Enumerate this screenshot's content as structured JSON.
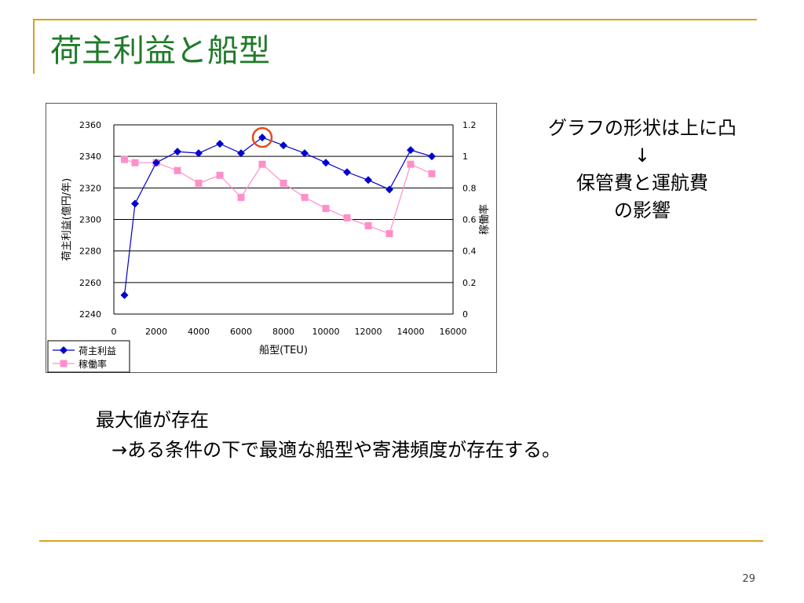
{
  "slide": {
    "title": "荷主利益と船型",
    "page_number": "29"
  },
  "note": {
    "line1": "グラフの形状は上に凸",
    "arrow": "↓",
    "line2": "保管費と運航費",
    "line3": "の影響"
  },
  "body": {
    "line1": "最大値が存在",
    "line2": "→ある条件の下で最適な船型や寄港頻度が存在する。"
  },
  "colors": {
    "accent": "#d9a21b",
    "title": "#1f7a28",
    "series_profit": "#0000cc",
    "series_util": "#ff8fc8",
    "highlight_circle": "#e84a1a"
  },
  "chart_data": {
    "type": "line",
    "xlabel": "船型(TEU)",
    "ylabel": "荷主利益(億円/年)",
    "y2label": "稼働率",
    "xlim": [
      0,
      16000
    ],
    "ylim": [
      2240,
      2360
    ],
    "y2lim": [
      0,
      1.2
    ],
    "x_ticks": [
      0,
      2000,
      4000,
      6000,
      8000,
      10000,
      12000,
      14000,
      16000
    ],
    "y_ticks": [
      2240,
      2260,
      2280,
      2300,
      2320,
      2340,
      2360
    ],
    "y2_ticks": [
      "0",
      "0.2",
      "0.4",
      "0.6",
      "0.8",
      "1",
      "1.2"
    ],
    "grid": "horizontal",
    "legend": "bottom-left",
    "highlight": {
      "series": "荷主利益",
      "x": 7000,
      "y": 2352
    },
    "series": [
      {
        "name": "荷主利益",
        "axis": "left",
        "marker": "diamond",
        "color": "#0000cc",
        "x": [
          500,
          1000,
          2000,
          3000,
          4000,
          5000,
          6000,
          7000,
          8000,
          9000,
          10000,
          11000,
          12000,
          13000,
          14000,
          15000
        ],
        "y": [
          2252,
          2310,
          2336,
          2343,
          2342,
          2348,
          2342,
          2352,
          2347,
          2342,
          2336,
          2330,
          2325,
          2319,
          2344,
          2340
        ]
      },
      {
        "name": "稼働率",
        "axis": "right",
        "marker": "square",
        "color": "#ff8fc8",
        "x": [
          500,
          1000,
          2000,
          3000,
          4000,
          5000,
          6000,
          7000,
          8000,
          9000,
          10000,
          11000,
          12000,
          13000,
          14000,
          15000
        ],
        "y": [
          0.98,
          0.96,
          0.96,
          0.91,
          0.83,
          0.88,
          0.74,
          0.95,
          0.83,
          0.74,
          0.67,
          0.61,
          0.56,
          0.51,
          0.95,
          0.89
        ]
      }
    ]
  }
}
